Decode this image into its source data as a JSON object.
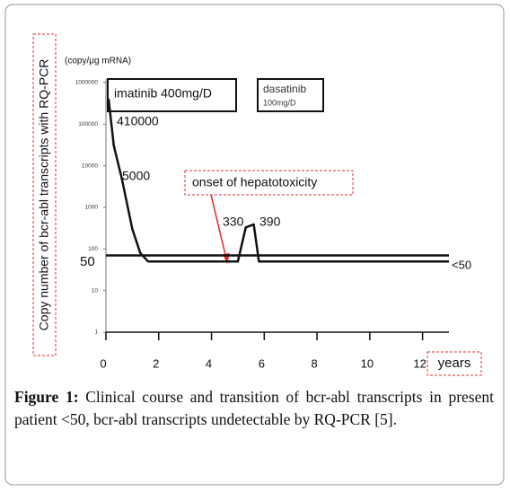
{
  "chart_data": {
    "type": "line",
    "y_label": "Copy number of bcr-abl transcripts with RQ-PCR",
    "unit_label": "(copy/μg mRNA)",
    "x_label": "years",
    "log_y": true,
    "xlim": [
      0,
      13
    ],
    "ylim": [
      1,
      1000000
    ],
    "xticks": [
      0,
      2,
      4,
      6,
      8,
      10,
      12
    ],
    "yticks": [
      1000000,
      100000,
      10000,
      1000,
      100,
      10,
      1
    ],
    "series": [
      {
        "color": "#111111",
        "x": [
          0.1,
          0.3,
          0.6,
          1.0,
          1.3,
          1.6,
          4.7,
          5.0,
          5.3,
          5.6,
          5.8,
          13
        ],
        "values": [
          410000,
          30000,
          5000,
          300,
          80,
          50,
          50,
          50,
          330,
          390,
          50,
          50
        ]
      },
      {
        "color": "#111111",
        "x": [
          0,
          13
        ],
        "values": [
          70,
          70
        ]
      }
    ],
    "annotations": {
      "imatinib": "imatinib 400mg/D",
      "dasatinib": "dasatinib",
      "dasatinib_dose": "100mg/D",
      "peak": "410000",
      "early": "5000",
      "onset": "onset of hepatotoxicity",
      "v330": "330",
      "v390": "390",
      "fifty": "50",
      "below": "<50"
    },
    "caption_label": "Figure 1:",
    "caption": "Clinical course and transition of bcr-abl transcripts in present patient <50, bcr-abl transcripts undetectable by RQ-PCR [5]."
  }
}
